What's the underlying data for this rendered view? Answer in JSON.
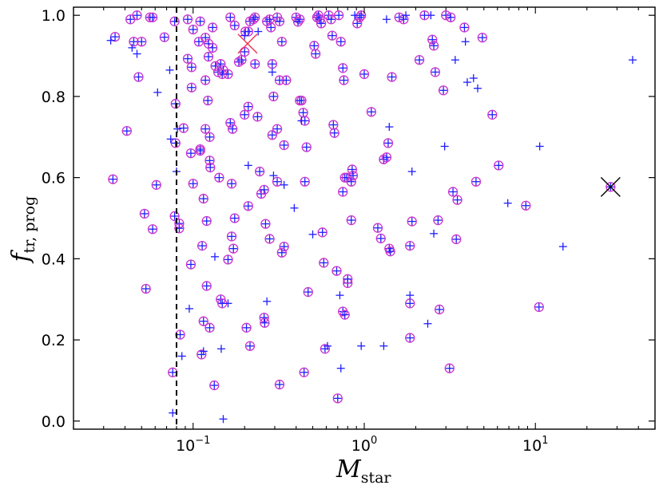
{
  "chart_data": {
    "type": "scatter",
    "title": "",
    "x_scale": "log",
    "xlim": [
      0.02,
      50
    ],
    "ylim": [
      -0.02,
      1.02
    ],
    "x_ticks": [
      {
        "value": 0.1,
        "base": "10",
        "exp": "−1"
      },
      {
        "value": 1,
        "label": "10",
        "exp": "0"
      },
      {
        "value": 10,
        "base": "10",
        "exp": "1"
      }
    ],
    "y_ticks": [
      0.0,
      0.2,
      0.4,
      0.6,
      0.8,
      1.0
    ],
    "y_tick_labels": [
      "0.0",
      "0.2",
      "0.4",
      "0.6",
      "0.8",
      "1.0"
    ],
    "xlabel": {
      "main": "M",
      "sub": "star"
    },
    "ylabel": {
      "main": "f",
      "sub": "tr, prog"
    },
    "grid": false,
    "vline": {
      "x": 0.08,
      "style": "dashed",
      "color": "#000000"
    },
    "colors": {
      "plus": "#1f1fff",
      "circle": "#cc33cc",
      "highlight_red": "#ee3355",
      "highlight_black": "#000000"
    },
    "series": [
      {
        "marker": "plus-in-circle",
        "points": [
          [
            0.035,
            0.947
          ],
          [
            0.043,
            0.99
          ],
          [
            0.047,
            1.0
          ],
          [
            0.045,
            0.935
          ],
          [
            0.05,
            0.935
          ],
          [
            0.048,
            0.848
          ],
          [
            0.056,
            0.995
          ],
          [
            0.058,
            0.995
          ],
          [
            0.068,
            0.946
          ],
          [
            0.041,
            0.715
          ],
          [
            0.034,
            0.596
          ],
          [
            0.061,
            0.582
          ],
          [
            0.052,
            0.511
          ],
          [
            0.058,
            0.473
          ],
          [
            0.053,
            0.326
          ],
          [
            0.078,
            0.985
          ],
          [
            0.079,
            0.782
          ],
          [
            0.079,
            0.685
          ],
          [
            0.078,
            0.505
          ],
          [
            0.083,
            0.487
          ],
          [
            0.083,
            0.475
          ],
          [
            0.084,
            0.213
          ],
          [
            0.076,
            0.12
          ],
          [
            0.093,
            0.99
          ],
          [
            0.1,
            0.965
          ],
          [
            0.093,
            0.893
          ],
          [
            0.098,
            0.872
          ],
          [
            0.098,
            0.822
          ],
          [
            0.088,
            0.722
          ],
          [
            0.097,
            0.66
          ],
          [
            0.1,
            0.585
          ],
          [
            0.097,
            0.386
          ],
          [
            0.108,
            0.935
          ],
          [
            0.11,
            0.985
          ],
          [
            0.118,
            0.945
          ],
          [
            0.123,
            0.93
          ],
          [
            0.123,
            0.898
          ],
          [
            0.118,
            0.84
          ],
          [
            0.122,
            0.79
          ],
          [
            0.118,
            0.72
          ],
          [
            0.125,
            0.7
          ],
          [
            0.11,
            0.67
          ],
          [
            0.11,
            0.666
          ],
          [
            0.125,
            0.642
          ],
          [
            0.126,
            0.625
          ],
          [
            0.115,
            0.548
          ],
          [
            0.12,
            0.493
          ],
          [
            0.113,
            0.432
          ],
          [
            0.12,
            0.333
          ],
          [
            0.115,
            0.246
          ],
          [
            0.125,
            0.23
          ],
          [
            0.112,
            0.164
          ],
          [
            0.13,
            0.97
          ],
          [
            0.13,
            0.92
          ],
          [
            0.135,
            0.875
          ],
          [
            0.14,
            0.86
          ],
          [
            0.145,
            0.88
          ],
          [
            0.15,
            0.865
          ],
          [
            0.148,
            0.855
          ],
          [
            0.142,
            0.6
          ],
          [
            0.145,
            0.3
          ],
          [
            0.148,
            0.29
          ],
          [
            0.133,
            0.088
          ],
          [
            0.16,
            0.855
          ],
          [
            0.165,
            0.735
          ],
          [
            0.17,
            0.72
          ],
          [
            0.168,
            0.585
          ],
          [
            0.175,
            0.5
          ],
          [
            0.168,
            0.455
          ],
          [
            0.172,
            0.425
          ],
          [
            0.16,
            0.398
          ],
          [
            0.165,
            0.995
          ],
          [
            0.175,
            0.975
          ],
          [
            0.185,
            0.885
          ],
          [
            0.192,
            0.89
          ],
          [
            0.2,
            0.91
          ],
          [
            0.202,
            0.96
          ],
          [
            0.21,
            0.96
          ],
          [
            0.215,
            0.985
          ],
          [
            0.225,
            0.99
          ],
          [
            0.23,
            0.995
          ],
          [
            0.2,
            0.755
          ],
          [
            0.21,
            0.775
          ],
          [
            0.21,
            0.53
          ],
          [
            0.205,
            0.23
          ],
          [
            0.215,
            0.185
          ],
          [
            0.23,
            0.88
          ],
          [
            0.238,
            0.75
          ],
          [
            0.245,
            0.615
          ],
          [
            0.25,
            0.56
          ],
          [
            0.26,
            0.57
          ],
          [
            0.265,
            0.486
          ],
          [
            0.26,
            0.255
          ],
          [
            0.262,
            0.242
          ],
          [
            0.27,
            0.985
          ],
          [
            0.28,
            0.99
          ],
          [
            0.285,
            0.97
          ],
          [
            0.29,
            0.88
          ],
          [
            0.295,
            0.8
          ],
          [
            0.29,
            0.705
          ],
          [
            0.28,
            0.449
          ],
          [
            0.31,
            0.995
          ],
          [
            0.32,
            0.985
          ],
          [
            0.33,
            0.935
          ],
          [
            0.32,
            0.84
          ],
          [
            0.31,
            0.72
          ],
          [
            0.31,
            0.59
          ],
          [
            0.34,
            0.68
          ],
          [
            0.35,
            0.84
          ],
          [
            0.34,
            0.43
          ],
          [
            0.33,
            0.415
          ],
          [
            0.32,
            0.09
          ],
          [
            0.4,
            0.995
          ],
          [
            0.42,
            0.99
          ],
          [
            0.41,
            0.984
          ],
          [
            0.43,
            0.79
          ],
          [
            0.42,
            0.79
          ],
          [
            0.44,
            0.76
          ],
          [
            0.45,
            0.74
          ],
          [
            0.46,
            0.675
          ],
          [
            0.45,
            0.59
          ],
          [
            0.47,
            0.318
          ],
          [
            0.445,
            0.12
          ],
          [
            0.51,
            0.925
          ],
          [
            0.52,
            0.905
          ],
          [
            0.53,
            0.995
          ],
          [
            0.54,
            1.0
          ],
          [
            0.55,
            0.99
          ],
          [
            0.56,
            0.98
          ],
          [
            0.57,
            0.465
          ],
          [
            0.58,
            0.39
          ],
          [
            0.59,
            0.178
          ],
          [
            0.62,
            1.0
          ],
          [
            0.64,
            0.99
          ],
          [
            0.65,
            0.95
          ],
          [
            0.66,
            0.73
          ],
          [
            0.67,
            0.71
          ],
          [
            0.69,
            0.37
          ],
          [
            0.7,
            0.056
          ],
          [
            0.71,
            1.0
          ],
          [
            0.73,
            0.935
          ],
          [
            0.75,
            0.87
          ],
          [
            0.76,
            0.84
          ],
          [
            0.77,
            0.6
          ],
          [
            0.75,
            0.565
          ],
          [
            0.79,
            0.6
          ],
          [
            0.8,
            0.34
          ],
          [
            0.8,
            0.35
          ],
          [
            0.75,
            0.27
          ],
          [
            0.77,
            0.262
          ],
          [
            0.85,
            0.62
          ],
          [
            0.86,
            0.605
          ],
          [
            0.84,
            0.59
          ],
          [
            0.84,
            0.495
          ],
          [
            0.91,
            0.98
          ],
          [
            0.94,
            0.995
          ],
          [
            0.96,
            1.0
          ],
          [
            1.0,
            0.855
          ],
          [
            1.1,
            0.762
          ],
          [
            1.2,
            0.476
          ],
          [
            1.25,
            0.45
          ],
          [
            1.3,
            0.645
          ],
          [
            1.35,
            0.65
          ],
          [
            1.38,
            0.685
          ],
          [
            1.4,
            0.425
          ],
          [
            1.42,
            0.418
          ],
          [
            1.45,
            0.848
          ],
          [
            1.6,
            0.995
          ],
          [
            1.7,
            0.99
          ],
          [
            1.85,
            0.29
          ],
          [
            1.9,
            0.492
          ],
          [
            1.85,
            0.432
          ],
          [
            1.85,
            0.205
          ],
          [
            2.1,
            0.89
          ],
          [
            2.25,
            1.0
          ],
          [
            2.5,
            0.94
          ],
          [
            2.55,
            0.925
          ],
          [
            2.6,
            0.86
          ],
          [
            2.7,
            0.495
          ],
          [
            2.75,
            0.275
          ],
          [
            2.9,
            0.815
          ],
          [
            3.0,
            1.0
          ],
          [
            3.2,
            0.995
          ],
          [
            3.3,
            0.565
          ],
          [
            3.45,
            0.448
          ],
          [
            3.15,
            0.13
          ],
          [
            3.5,
            0.545
          ],
          [
            3.85,
            0.97
          ],
          [
            4.5,
            0.59
          ],
          [
            4.9,
            0.945
          ],
          [
            5.6,
            0.755
          ],
          [
            6.1,
            0.63
          ],
          [
            8.8,
            0.531
          ],
          [
            10.5,
            0.281
          ],
          [
            27.5,
            0.577
          ]
        ]
      },
      {
        "marker": "plus",
        "points": [
          [
            0.033,
            0.938
          ],
          [
            0.044,
            0.92
          ],
          [
            0.047,
            0.905
          ],
          [
            0.062,
            0.81
          ],
          [
            0.073,
            0.865
          ],
          [
            0.081,
            0.72
          ],
          [
            0.074,
            0.695
          ],
          [
            0.08,
            0.615
          ],
          [
            0.076,
            0.02
          ],
          [
            0.086,
            0.16
          ],
          [
            0.095,
            0.277
          ],
          [
            0.115,
            0.172
          ],
          [
            0.134,
            0.405
          ],
          [
            0.146,
            0.178
          ],
          [
            0.15,
            0.005
          ],
          [
            0.16,
            0.29
          ],
          [
            0.21,
            0.63
          ],
          [
            0.27,
            0.295
          ],
          [
            0.29,
            0.86
          ],
          [
            0.295,
            0.605
          ],
          [
            0.34,
            0.582
          ],
          [
            0.39,
            0.525
          ],
          [
            0.43,
            0.74
          ],
          [
            0.5,
            0.46
          ],
          [
            0.61,
            0.185
          ],
          [
            0.72,
            0.31
          ],
          [
            0.73,
            0.13
          ],
          [
            0.96,
            0.185
          ],
          [
            1.3,
            0.185
          ],
          [
            1.4,
            0.725
          ],
          [
            1.85,
            0.31
          ],
          [
            1.9,
            0.615
          ],
          [
            2.35,
            0.24
          ],
          [
            2.55,
            0.462
          ],
          [
            2.95,
            0.677
          ],
          [
            3.4,
            0.89
          ],
          [
            3.9,
            0.935
          ],
          [
            4.0,
            0.835
          ],
          [
            4.35,
            0.845
          ],
          [
            4.6,
            0.82
          ],
          [
            6.9,
            0.537
          ],
          [
            10.6,
            0.677
          ],
          [
            14.5,
            0.43
          ],
          [
            37.0,
            0.89
          ],
          [
            1.75,
            1.0
          ],
          [
            2.45,
            1.0
          ],
          [
            1.35,
            0.99
          ],
          [
            0.88,
            1.0
          ],
          [
            0.24,
            0.96
          ],
          [
            0.2,
            0.95
          ]
        ]
      }
    ],
    "highlights": [
      {
        "x": 0.208,
        "y": 0.93,
        "marker": "x",
        "color": "red"
      },
      {
        "x": 27.5,
        "y": 0.577,
        "marker": "x",
        "color": "black"
      }
    ]
  }
}
